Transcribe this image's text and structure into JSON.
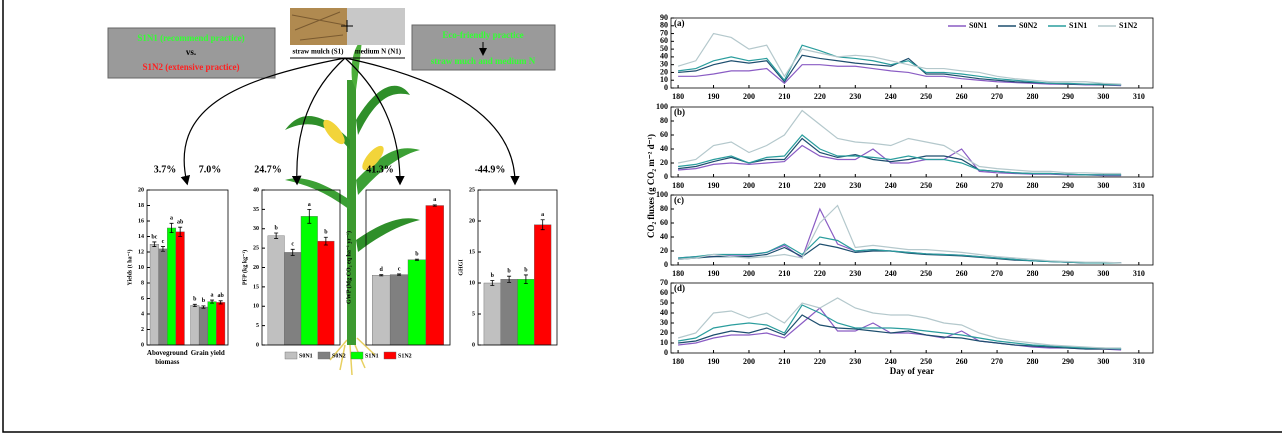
{
  "diagram": {
    "left_box": [
      "S1N1 (recommend practice)",
      "vs.",
      "S1N2 (extensive practice)"
    ],
    "photo_labels": [
      "straw mulch (S1)",
      "medium N (N1)"
    ],
    "right_box": [
      "Eco-friendly practice",
      "straw much and medium N"
    ],
    "percentages": [
      "3.7%",
      "7.0%",
      "24.7%",
      "41.3%",
      "-44.9%"
    ]
  },
  "chart_data": [
    {
      "type": "bar",
      "ylabel": "Yields (t ha⁻¹)",
      "categories": [
        "Aboveground biomass",
        "Grain yield"
      ],
      "ylim": [
        0,
        20
      ],
      "yticks": [
        0,
        2,
        4,
        6,
        8,
        10,
        12,
        14,
        16,
        18,
        20
      ],
      "series": [
        {
          "name": "S0N1",
          "color": "#c0c0c0",
          "values": [
            13,
            5.1
          ],
          "errors": [
            0.3,
            0.15
          ],
          "letters": [
            "bc",
            "b"
          ]
        },
        {
          "name": "S0N2",
          "color": "#808080",
          "values": [
            12.4,
            4.9
          ],
          "errors": [
            0.3,
            0.15
          ],
          "letters": [
            "c",
            "b"
          ]
        },
        {
          "name": "S1N1",
          "color": "#00ff00",
          "values": [
            15.1,
            5.6
          ],
          "errors": [
            0.6,
            0.2
          ],
          "letters": [
            "a",
            "a"
          ]
        },
        {
          "name": "S1N2",
          "color": "#ff0000",
          "values": [
            14.6,
            5.5
          ],
          "errors": [
            0.6,
            0.2
          ],
          "letters": [
            "ab",
            "ab"
          ]
        }
      ]
    },
    {
      "type": "bar",
      "ylabel": "PFP (kg kg⁻¹)",
      "ylim": [
        0,
        40
      ],
      "yticks": [
        0,
        5,
        10,
        15,
        20,
        25,
        30,
        35,
        40
      ],
      "series": [
        {
          "color": "#c0c0c0",
          "values": [
            28.2
          ],
          "errors": [
            0.7
          ],
          "letters": [
            "b"
          ]
        },
        {
          "color": "#808080",
          "values": [
            23.9
          ],
          "errors": [
            0.8
          ],
          "letters": [
            "c"
          ]
        },
        {
          "color": "#00ff00",
          "values": [
            33.2
          ],
          "errors": [
            1.8
          ],
          "letters": [
            "a"
          ]
        },
        {
          "color": "#ff0000",
          "values": [
            26.8
          ],
          "errors": [
            1.0
          ],
          "letters": [
            "b"
          ]
        }
      ]
    },
    {
      "type": "bar",
      "ylabel": "GWP (Mg CO₂ eq ha⁻¹ yr⁻¹)",
      "ylim": [
        0,
        12
      ],
      "series": [
        {
          "color": "#c0c0c0",
          "values": [
            5.4
          ],
          "errors": [
            0.05
          ],
          "letters": [
            "d"
          ]
        },
        {
          "color": "#808080",
          "values": [
            5.45
          ],
          "errors": [
            0.05
          ],
          "letters": [
            "c"
          ]
        },
        {
          "color": "#00ff00",
          "values": [
            6.6
          ],
          "errors": [
            0.05
          ],
          "letters": [
            "b"
          ]
        },
        {
          "color": "#ff0000",
          "values": [
            10.8
          ],
          "errors": [
            0.05
          ],
          "letters": [
            "a"
          ]
        }
      ]
    },
    {
      "type": "bar",
      "ylabel": "GHGI",
      "ylim": [
        0,
        25
      ],
      "yticks": [
        0,
        5,
        10,
        15,
        20,
        25
      ],
      "series": [
        {
          "color": "#c0c0c0",
          "values": [
            10
          ],
          "errors": [
            0.4
          ],
          "letters": [
            "b"
          ]
        },
        {
          "color": "#808080",
          "values": [
            10.6
          ],
          "errors": [
            0.5
          ],
          "letters": [
            "b"
          ]
        },
        {
          "color": "#00ff00",
          "values": [
            10.6
          ],
          "errors": [
            0.7
          ],
          "letters": [
            "b"
          ]
        },
        {
          "color": "#ff0000",
          "values": [
            19.4
          ],
          "errors": [
            0.8
          ],
          "letters": [
            "a"
          ]
        }
      ]
    },
    {
      "type": "line",
      "panel": "(a)",
      "legend": "upper right",
      "xlim": [
        178,
        314
      ],
      "xticks": [
        180,
        190,
        200,
        210,
        220,
        230,
        240,
        250,
        260,
        270,
        280,
        290,
        300,
        310
      ],
      "ylim": [
        0,
        90
      ],
      "yticks": [
        0,
        10,
        20,
        30,
        40,
        50,
        60,
        70,
        80,
        90
      ],
      "x": [
        180,
        185,
        190,
        195,
        200,
        205,
        210,
        215,
        220,
        225,
        230,
        235,
        240,
        245,
        250,
        255,
        260,
        265,
        270,
        275,
        280,
        285,
        290,
        295,
        300,
        305
      ],
      "series": [
        {
          "name": "S0N1",
          "color": "#8a5cc4",
          "values": [
            15,
            15,
            18,
            22,
            22,
            25,
            6,
            30,
            30,
            28,
            28,
            25,
            22,
            20,
            15,
            15,
            12,
            10,
            8,
            7,
            6,
            5,
            5,
            4,
            4,
            3
          ]
        },
        {
          "name": "S0N2",
          "color": "#1d4e6e",
          "values": [
            20,
            22,
            30,
            35,
            32,
            35,
            8,
            42,
            38,
            35,
            32,
            30,
            28,
            38,
            18,
            18,
            15,
            12,
            10,
            8,
            7,
            6,
            5,
            5,
            4,
            4
          ]
        },
        {
          "name": "S1N1",
          "color": "#2a9d9d",
          "values": [
            22,
            25,
            35,
            40,
            35,
            38,
            10,
            55,
            48,
            40,
            38,
            35,
            30,
            35,
            20,
            20,
            18,
            15,
            12,
            10,
            8,
            6,
            6,
            5,
            5,
            4
          ]
        },
        {
          "name": "S1N2",
          "color": "#b4c8cc",
          "values": [
            28,
            35,
            70,
            65,
            50,
            55,
            15,
            50,
            45,
            40,
            42,
            40,
            35,
            30,
            25,
            25,
            22,
            20,
            15,
            12,
            10,
            8,
            8,
            8,
            6,
            5
          ]
        }
      ]
    },
    {
      "type": "line",
      "panel": "(b)",
      "ylabel": "CO₂ fluxes (g CO₂ m⁻² d⁻¹)",
      "xlim": [
        178,
        314
      ],
      "xticks": [
        180,
        190,
        200,
        210,
        220,
        230,
        240,
        250,
        260,
        270,
        280,
        290,
        300,
        310
      ],
      "ylim": [
        0,
        100
      ],
      "yticks": [
        0,
        20,
        40,
        60,
        80,
        100
      ],
      "x": [
        180,
        185,
        190,
        195,
        200,
        205,
        210,
        215,
        220,
        225,
        230,
        235,
        240,
        245,
        250,
        255,
        260,
        265,
        270,
        275,
        280,
        285,
        290,
        295,
        300,
        305
      ],
      "series": [
        {
          "color": "#8a5cc4",
          "values": [
            10,
            12,
            18,
            20,
            18,
            20,
            22,
            45,
            30,
            25,
            25,
            40,
            20,
            20,
            25,
            25,
            40,
            8,
            6,
            5,
            4,
            4,
            3,
            3,
            2,
            2
          ]
        },
        {
          "color": "#1d4e6e",
          "values": [
            12,
            15,
            22,
            28,
            20,
            25,
            25,
            55,
            35,
            28,
            32,
            25,
            22,
            25,
            30,
            30,
            25,
            10,
            8,
            6,
            5,
            5,
            4,
            3,
            3,
            3
          ]
        },
        {
          "color": "#2a9d9d",
          "values": [
            15,
            18,
            25,
            30,
            20,
            28,
            30,
            60,
            40,
            30,
            30,
            28,
            25,
            30,
            25,
            25,
            20,
            10,
            8,
            6,
            5,
            5,
            4,
            3,
            3,
            3
          ]
        },
        {
          "color": "#b4c8cc",
          "values": [
            20,
            25,
            45,
            50,
            35,
            45,
            60,
            95,
            75,
            55,
            50,
            48,
            45,
            55,
            50,
            45,
            30,
            15,
            12,
            10,
            8,
            8,
            6,
            6,
            5,
            5
          ]
        }
      ]
    },
    {
      "type": "line",
      "panel": "(c)",
      "xlim": [
        178,
        314
      ],
      "xticks": [
        180,
        190,
        200,
        210,
        220,
        230,
        240,
        250,
        260,
        270,
        280,
        290,
        300,
        310
      ],
      "ylim": [
        0,
        100
      ],
      "yticks": [
        0,
        20,
        40,
        60,
        80,
        100
      ],
      "x": [
        180,
        185,
        190,
        195,
        200,
        205,
        210,
        215,
        220,
        225,
        230,
        235,
        240,
        245,
        250,
        255,
        260,
        265,
        270,
        275,
        280,
        285,
        290,
        295,
        300,
        305
      ],
      "series": [
        {
          "color": "#8a5cc4",
          "values": [
            10,
            12,
            12,
            14,
            14,
            18,
            28,
            10,
            80,
            30,
            20,
            22,
            20,
            18,
            16,
            15,
            14,
            12,
            10,
            8,
            6,
            5,
            4,
            3,
            3,
            3
          ]
        },
        {
          "color": "#1d4e6e",
          "values": [
            8,
            10,
            12,
            12,
            12,
            15,
            25,
            12,
            30,
            25,
            18,
            20,
            20,
            17,
            15,
            14,
            13,
            11,
            9,
            7,
            6,
            5,
            4,
            3,
            3,
            3
          ]
        },
        {
          "color": "#2a9d9d",
          "values": [
            10,
            12,
            15,
            15,
            15,
            18,
            30,
            15,
            40,
            35,
            20,
            22,
            20,
            18,
            16,
            15,
            14,
            12,
            10,
            8,
            6,
            5,
            4,
            3,
            3,
            3
          ]
        },
        {
          "color": "#b4c8cc",
          "values": [
            8,
            10,
            15,
            12,
            10,
            12,
            15,
            10,
            60,
            85,
            25,
            28,
            25,
            22,
            22,
            20,
            18,
            15,
            12,
            10,
            8,
            6,
            5,
            4,
            4,
            3
          ]
        }
      ]
    },
    {
      "type": "line",
      "panel": "(d)",
      "xlabel": "Day of year",
      "xlim": [
        178,
        314
      ],
      "xticks": [
        180,
        190,
        200,
        210,
        220,
        230,
        240,
        250,
        260,
        270,
        280,
        290,
        300,
        310
      ],
      "ylim": [
        0,
        70
      ],
      "yticks": [
        0,
        10,
        20,
        30,
        40,
        50,
        60,
        70
      ],
      "x": [
        180,
        185,
        190,
        195,
        200,
        205,
        210,
        215,
        220,
        225,
        230,
        235,
        240,
        245,
        250,
        255,
        260,
        265,
        270,
        275,
        280,
        285,
        290,
        295,
        300,
        305
      ],
      "series": [
        {
          "color": "#8a5cc4",
          "values": [
            8,
            10,
            15,
            18,
            18,
            20,
            15,
            30,
            45,
            22,
            22,
            30,
            20,
            20,
            18,
            15,
            22,
            12,
            10,
            8,
            6,
            5,
            5,
            4,
            4,
            3
          ]
        },
        {
          "color": "#1d4e6e",
          "values": [
            10,
            12,
            18,
            22,
            20,
            25,
            18,
            38,
            28,
            25,
            24,
            22,
            20,
            22,
            18,
            16,
            15,
            12,
            10,
            8,
            7,
            6,
            5,
            4,
            4,
            4
          ]
        },
        {
          "color": "#2a9d9d",
          "values": [
            12,
            15,
            25,
            28,
            30,
            28,
            20,
            48,
            40,
            30,
            25,
            25,
            25,
            24,
            22,
            20,
            18,
            15,
            12,
            10,
            8,
            7,
            6,
            5,
            5,
            4
          ]
        },
        {
          "color": "#b4c8cc",
          "values": [
            15,
            20,
            40,
            42,
            35,
            40,
            30,
            50,
            45,
            55,
            45,
            40,
            38,
            38,
            35,
            30,
            28,
            20,
            15,
            12,
            10,
            8,
            7,
            6,
            5,
            5
          ]
        }
      ]
    }
  ]
}
